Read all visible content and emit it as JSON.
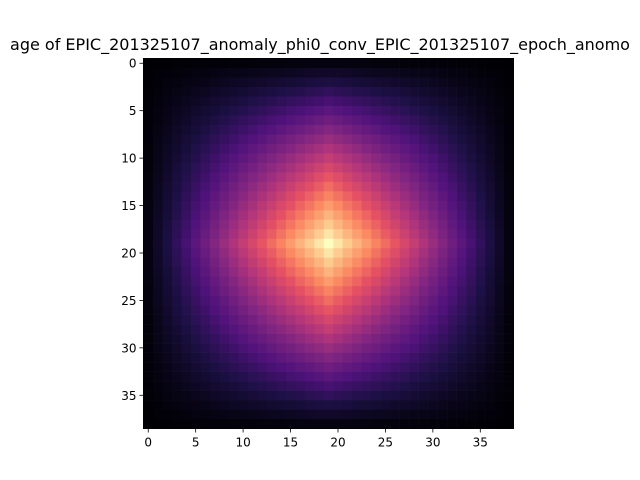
{
  "chart_data": {
    "type": "heatmap",
    "title": "age of EPIC_201325107_anomaly_phi0_conv_EPIC_201325107_epoch_anomo",
    "xlabel": "",
    "ylabel": "",
    "colormap": "magma",
    "grid": false,
    "n_cols": 39,
    "n_rows": 39,
    "peak": {
      "x": 19,
      "y": 19
    },
    "xlim": [
      -0.5,
      38.5
    ],
    "ylim": [
      38.5,
      -0.5
    ],
    "xticks": [
      0,
      5,
      10,
      15,
      20,
      25,
      30,
      35
    ],
    "yticks": [
      0,
      5,
      10,
      15,
      20,
      25,
      30,
      35
    ],
    "xtick_labels": [
      "0",
      "5",
      "10",
      "15",
      "20",
      "25",
      "30",
      "35"
    ],
    "ytick_labels": [
      "0",
      "5",
      "10",
      "15",
      "20",
      "25",
      "30",
      "35"
    ],
    "value_model": "value(i,j) = max(0, 1 - |i-19|/19.5) * max(0, 1 - |j-19|/19.5) mapped to magma (0 = black, 1 = pale yellow)"
  }
}
